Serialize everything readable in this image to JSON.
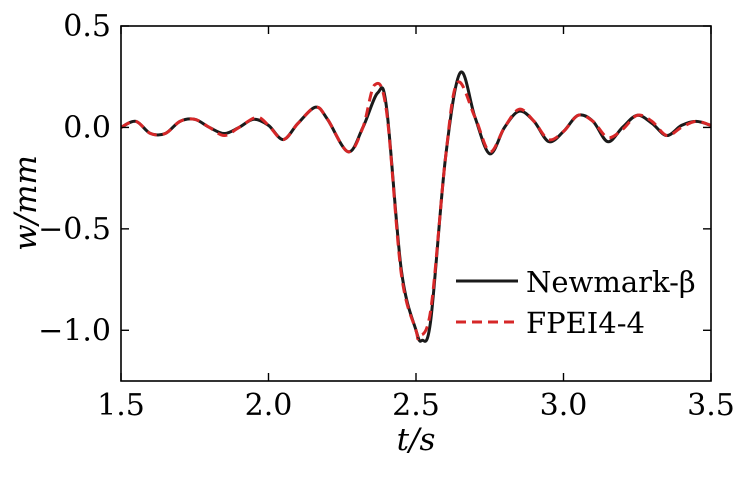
{
  "chart_data": {
    "type": "line",
    "xlabel": "t/s",
    "ylabel": "w/mm",
    "xlim": [
      1.5,
      3.5
    ],
    "ylim": [
      -1.25,
      0.5
    ],
    "xticks": [
      1.5,
      2.0,
      2.5,
      3.0,
      3.5
    ],
    "xtick_labels": [
      "1.5",
      "2.0",
      "2.5",
      "3.0",
      "3.5"
    ],
    "yticks": [
      -1.0,
      -0.5,
      0.0,
      0.5
    ],
    "ytick_labels": [
      "−1.0",
      "−0.5",
      "0.0",
      "0.5"
    ],
    "grid": false,
    "legend_position": "lower-right",
    "series": [
      {
        "name": "Newmark-β",
        "color": "#1a1a1a",
        "style": "solid",
        "x": [
          1.5,
          1.55,
          1.6,
          1.65,
          1.7,
          1.75,
          1.8,
          1.85,
          1.9,
          1.95,
          2.0,
          2.05,
          2.1,
          2.16,
          2.2,
          2.27,
          2.32,
          2.37,
          2.4,
          2.45,
          2.5,
          2.52,
          2.55,
          2.6,
          2.65,
          2.7,
          2.75,
          2.8,
          2.85,
          2.9,
          2.95,
          3.0,
          3.05,
          3.1,
          3.15,
          3.2,
          3.25,
          3.3,
          3.35,
          3.4,
          3.45,
          3.5
        ],
        "y": [
          0.0,
          0.03,
          -0.03,
          -0.03,
          0.03,
          0.04,
          0.0,
          -0.03,
          0.0,
          0.04,
          0.01,
          -0.06,
          0.02,
          0.1,
          0.04,
          -0.12,
          0.0,
          0.17,
          0.1,
          -0.7,
          -1.0,
          -1.05,
          -0.95,
          -0.15,
          0.27,
          0.05,
          -0.13,
          0.0,
          0.08,
          0.03,
          -0.07,
          -0.02,
          0.06,
          0.03,
          -0.07,
          0.0,
          0.06,
          0.02,
          -0.04,
          0.01,
          0.03,
          0.01
        ]
      },
      {
        "name": "FPEI4-4",
        "color": "#d62728",
        "style": "dashed",
        "x": [
          1.5,
          1.55,
          1.6,
          1.65,
          1.7,
          1.75,
          1.8,
          1.85,
          1.9,
          1.96,
          2.0,
          2.05,
          2.1,
          2.16,
          2.2,
          2.27,
          2.32,
          2.36,
          2.4,
          2.45,
          2.5,
          2.51,
          2.55,
          2.6,
          2.64,
          2.7,
          2.75,
          2.8,
          2.85,
          2.9,
          2.95,
          3.0,
          3.05,
          3.1,
          3.15,
          3.2,
          3.25,
          3.3,
          3.35,
          3.4,
          3.45,
          3.5
        ],
        "y": [
          0.0,
          0.03,
          -0.03,
          -0.03,
          0.03,
          0.04,
          0.0,
          -0.04,
          0.0,
          0.05,
          0.01,
          -0.06,
          0.02,
          0.1,
          0.04,
          -0.12,
          0.0,
          0.21,
          0.08,
          -0.72,
          -1.0,
          -1.03,
          -0.9,
          -0.15,
          0.22,
          0.05,
          -0.12,
          0.0,
          0.09,
          0.03,
          -0.06,
          -0.02,
          0.06,
          0.03,
          -0.05,
          -0.01,
          0.06,
          0.03,
          -0.04,
          0.0,
          0.03,
          0.01
        ]
      }
    ]
  }
}
